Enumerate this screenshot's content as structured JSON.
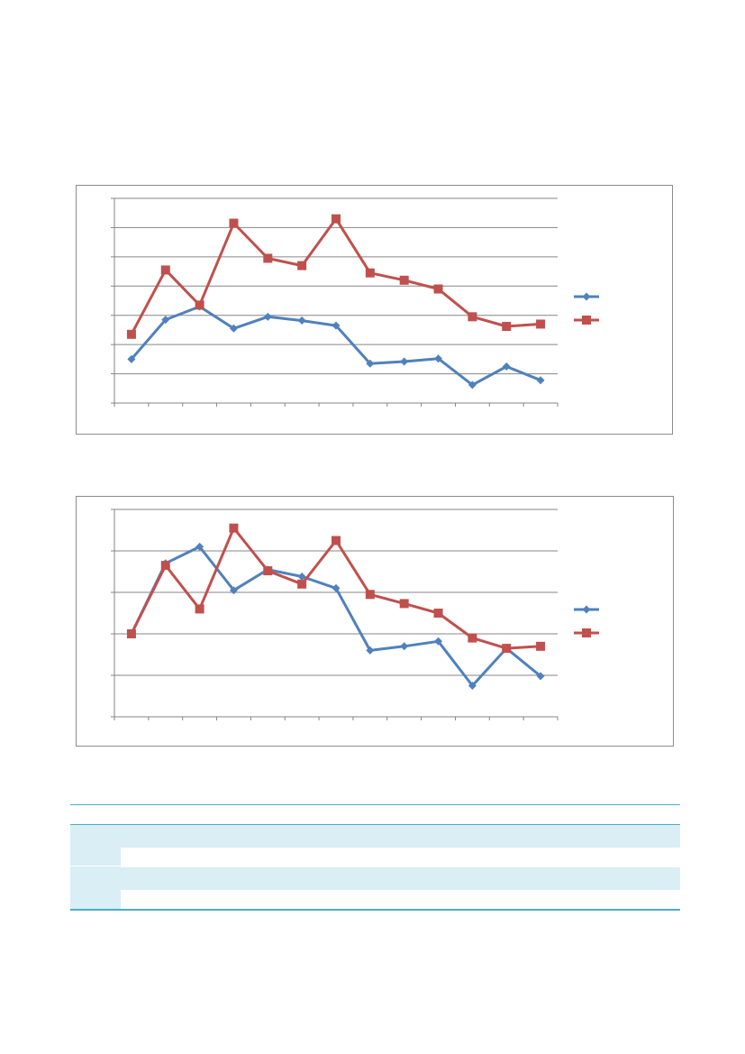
{
  "colors": {
    "series1": "#4f81bd",
    "series2": "#c0504d",
    "grid": "#868686",
    "table_accent": "#4bacc6",
    "table_shade": "#d9eef5"
  },
  "chart_data": [
    {
      "type": "line",
      "grid": true,
      "legend": "right",
      "x": [
        1,
        2,
        3,
        4,
        5,
        6,
        7,
        8,
        9,
        10,
        11,
        12,
        13
      ],
      "ylim": [
        0,
        7
      ],
      "series": [
        {
          "marker": "diamond",
          "values": [
            1.5,
            2.85,
            3.3,
            2.55,
            2.95,
            2.82,
            2.65,
            1.35,
            1.42,
            1.52,
            0.62,
            1.25,
            0.78
          ]
        },
        {
          "marker": "square",
          "values": [
            2.35,
            4.55,
            3.35,
            6.15,
            4.95,
            4.7,
            6.3,
            4.45,
            4.2,
            3.9,
            2.95,
            2.62,
            2.7
          ]
        }
      ]
    },
    {
      "type": "line",
      "grid": true,
      "legend": "right",
      "x": [
        1,
        2,
        3,
        4,
        5,
        6,
        7,
        8,
        9,
        10,
        11,
        12,
        13
      ],
      "ylim": [
        0,
        5
      ],
      "series": [
        {
          "marker": "diamond",
          "values": [
            2.0,
            3.7,
            4.1,
            3.05,
            3.55,
            3.38,
            3.1,
            1.6,
            1.7,
            1.82,
            0.75,
            1.65,
            0.98
          ]
        },
        {
          "marker": "square",
          "values": [
            2.0,
            3.65,
            2.6,
            4.55,
            3.52,
            3.2,
            4.25,
            2.95,
            2.73,
            2.5,
            1.9,
            1.65,
            1.7
          ]
        }
      ]
    }
  ]
}
